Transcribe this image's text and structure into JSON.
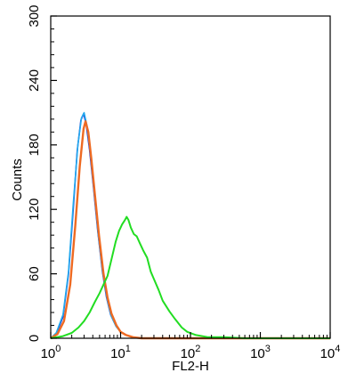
{
  "chart_data": {
    "type": "line",
    "title": "",
    "xlabel": "FL2-H",
    "ylabel": "Counts",
    "xscale": "log",
    "xlim": [
      1,
      10000
    ],
    "ylim": [
      0,
      300
    ],
    "grid": false,
    "x_ticks": [
      {
        "value": 1,
        "base": "10",
        "exp": "0"
      },
      {
        "value": 10,
        "base": "10",
        "exp": "1"
      },
      {
        "value": 100,
        "base": "10",
        "exp": "2"
      },
      {
        "value": 1000,
        "base": "10",
        "exp": "3"
      },
      {
        "value": 10000,
        "base": "10",
        "exp": "4"
      }
    ],
    "y_ticks": [
      {
        "value": 0,
        "label": "0"
      },
      {
        "value": 60,
        "label": "60"
      },
      {
        "value": 120,
        "label": "120"
      },
      {
        "value": 180,
        "label": "180"
      },
      {
        "value": 240,
        "label": "240"
      },
      {
        "value": 300,
        "label": "300"
      }
    ],
    "series": [
      {
        "color": "#2233cc",
        "width": 1.6,
        "points": [
          [
            1.0,
            0
          ],
          [
            1.2,
            4
          ],
          [
            1.5,
            20
          ],
          [
            1.8,
            60
          ],
          [
            2.1,
            120
          ],
          [
            2.4,
            175
          ],
          [
            2.7,
            203
          ],
          [
            2.95,
            209
          ],
          [
            3.2,
            200
          ],
          [
            3.6,
            175
          ],
          [
            4.1,
            140
          ],
          [
            4.7,
            100
          ],
          [
            5.5,
            62
          ],
          [
            6.3,
            38
          ],
          [
            7.2,
            22
          ],
          [
            8.5,
            12
          ],
          [
            10,
            6
          ],
          [
            12,
            3
          ],
          [
            15,
            1
          ],
          [
            20,
            0
          ],
          [
            30,
            0
          ],
          [
            100,
            0
          ],
          [
            1000,
            0
          ],
          [
            10000,
            0
          ]
        ]
      },
      {
        "color": "#22aaee",
        "width": 1.6,
        "points": [
          [
            1.0,
            0
          ],
          [
            1.2,
            5
          ],
          [
            1.5,
            22
          ],
          [
            1.8,
            62
          ],
          [
            2.1,
            125
          ],
          [
            2.45,
            180
          ],
          [
            2.75,
            205
          ],
          [
            3.0,
            210
          ],
          [
            3.3,
            198
          ],
          [
            3.7,
            172
          ],
          [
            4.2,
            136
          ],
          [
            4.8,
            96
          ],
          [
            5.6,
            60
          ],
          [
            6.4,
            37
          ],
          [
            7.3,
            21
          ],
          [
            8.6,
            11
          ],
          [
            10,
            6
          ],
          [
            12,
            3
          ],
          [
            15,
            1
          ],
          [
            20,
            0
          ],
          [
            30,
            0
          ],
          [
            100,
            0
          ],
          [
            1000,
            0
          ],
          [
            10000,
            0
          ]
        ]
      },
      {
        "color": "#ee6a22",
        "width": 2.4,
        "points": [
          [
            1.0,
            0
          ],
          [
            1.25,
            4
          ],
          [
            1.55,
            16
          ],
          [
            1.9,
            50
          ],
          [
            2.25,
            105
          ],
          [
            2.6,
            160
          ],
          [
            2.95,
            195
          ],
          [
            3.15,
            202
          ],
          [
            3.45,
            192
          ],
          [
            3.8,
            168
          ],
          [
            4.3,
            133
          ],
          [
            4.9,
            96
          ],
          [
            5.7,
            60
          ],
          [
            6.5,
            38
          ],
          [
            7.4,
            23
          ],
          [
            8.7,
            12
          ],
          [
            10,
            6
          ],
          [
            12,
            3
          ],
          [
            15,
            1
          ],
          [
            20,
            0
          ],
          [
            30,
            0
          ],
          [
            100,
            0
          ],
          [
            1000,
            0
          ],
          [
            10000,
            0
          ]
        ]
      },
      {
        "color": "#22dd22",
        "width": 2.0,
        "points": [
          [
            1.0,
            0
          ],
          [
            1.5,
            2
          ],
          [
            2.0,
            5
          ],
          [
            2.5,
            10
          ],
          [
            3.0,
            16
          ],
          [
            3.6,
            24
          ],
          [
            4.3,
            34
          ],
          [
            5.0,
            42
          ],
          [
            5.7,
            50
          ],
          [
            6.5,
            58
          ],
          [
            7.5,
            75
          ],
          [
            8.5,
            90
          ],
          [
            9.5,
            100
          ],
          [
            10.5,
            106
          ],
          [
            11.5,
            110
          ],
          [
            12.2,
            113
          ],
          [
            13,
            110
          ],
          [
            14,
            103
          ],
          [
            15.5,
            97
          ],
          [
            17,
            95
          ],
          [
            19,
            88
          ],
          [
            21,
            82
          ],
          [
            24,
            75
          ],
          [
            27,
            62
          ],
          [
            30,
            55
          ],
          [
            35,
            45
          ],
          [
            40,
            35
          ],
          [
            50,
            25
          ],
          [
            60,
            18
          ],
          [
            75,
            10
          ],
          [
            90,
            6
          ],
          [
            120,
            3
          ],
          [
            180,
            1
          ],
          [
            300,
            1
          ],
          [
            600,
            0
          ],
          [
            1000,
            0
          ],
          [
            3000,
            0
          ],
          [
            10000,
            0
          ]
        ]
      }
    ]
  }
}
